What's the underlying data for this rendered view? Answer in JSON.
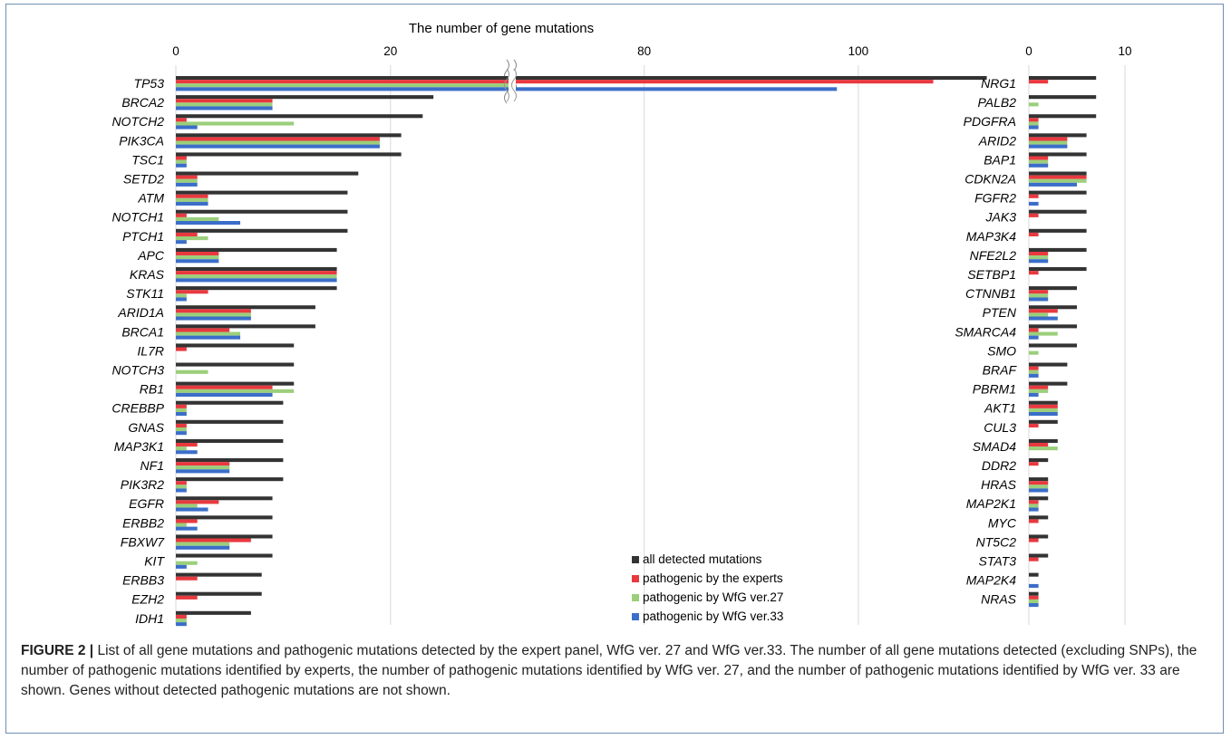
{
  "chart_data": {
    "type": "bar",
    "orientation": "horizontal",
    "title": "The number of gene mutations",
    "series": [
      {
        "name": "all detected mutations",
        "color": "#333333"
      },
      {
        "name": "pathogenic by the experts",
        "color": "#e8393f"
      },
      {
        "name": "pathogenic by WfG ver.27",
        "color": "#9bcf7b"
      },
      {
        "name": "pathogenic by WfG ver.33",
        "color": "#3b6ec9"
      }
    ],
    "panels": [
      {
        "id": "left",
        "axis": {
          "type": "broken",
          "segments": [
            {
              "range": [
                0,
                31
              ],
              "ticks": [
                0,
                20
              ]
            },
            {
              "range": [
                68,
                115
              ],
              "ticks": [
                80,
                100
              ]
            }
          ]
        },
        "grid": true,
        "genes": [
          "TP53",
          "BRCA2",
          "NOTCH2",
          "PIK3CA",
          "TSC1",
          "SETD2",
          "ATM",
          "NOTCH1",
          "PTCH1",
          "APC",
          "KRAS",
          "STK11",
          "ARID1A",
          "BRCA1",
          "IL7R",
          "NOTCH3",
          "RB1",
          "CREBBP",
          "GNAS",
          "MAP3K1",
          "NF1",
          "PIK3R2",
          "EGFR",
          "ERBB2",
          "FBXW7",
          "KIT",
          "ERBB3",
          "EZH2",
          "IDH1"
        ],
        "values": [
          [
            112,
            107,
            68,
            98
          ],
          [
            24,
            9,
            9,
            9
          ],
          [
            23,
            1,
            11,
            2
          ],
          [
            21,
            19,
            19,
            19
          ],
          [
            21,
            1,
            1,
            1
          ],
          [
            17,
            2,
            2,
            2
          ],
          [
            16,
            3,
            3,
            3
          ],
          [
            16,
            1,
            4,
            6
          ],
          [
            16,
            2,
            3,
            1
          ],
          [
            15,
            4,
            4,
            4
          ],
          [
            15,
            15,
            15,
            15
          ],
          [
            15,
            3,
            1,
            1
          ],
          [
            13,
            7,
            7,
            7
          ],
          [
            13,
            5,
            6,
            6
          ],
          [
            11,
            1,
            0,
            0
          ],
          [
            11,
            0,
            3,
            0
          ],
          [
            11,
            9,
            11,
            9
          ],
          [
            10,
            1,
            1,
            1
          ],
          [
            10,
            1,
            1,
            1
          ],
          [
            10,
            2,
            1,
            2
          ],
          [
            10,
            5,
            5,
            5
          ],
          [
            10,
            1,
            1,
            1
          ],
          [
            9,
            4,
            2,
            3
          ],
          [
            9,
            2,
            1,
            2
          ],
          [
            9,
            7,
            5,
            5
          ],
          [
            9,
            0,
            2,
            1
          ],
          [
            8,
            2,
            0,
            0
          ],
          [
            8,
            2,
            0,
            0
          ],
          [
            7,
            1,
            1,
            1
          ]
        ]
      },
      {
        "id": "right",
        "axis": {
          "range": [
            0,
            14
          ],
          "ticks": [
            0,
            10
          ]
        },
        "grid": true,
        "genes": [
          "NRG1",
          "PALB2",
          "PDGFRA",
          "ARID2",
          "BAP1",
          "CDKN2A",
          "FGFR2",
          "JAK3",
          "MAP3K4",
          "NFE2L2",
          "SETBP1",
          "CTNNB1",
          "PTEN",
          "SMARCA4",
          "SMO",
          "BRAF",
          "PBRM1",
          "AKT1",
          "CUL3",
          "SMAD4",
          "DDR2",
          "HRAS",
          "MAP2K1",
          "MYC",
          "NT5C2",
          "STAT3",
          "MAP2K4",
          "NRAS"
        ],
        "values": [
          [
            7,
            2,
            0,
            0
          ],
          [
            7,
            0,
            1,
            0
          ],
          [
            7,
            1,
            1,
            1
          ],
          [
            6,
            4,
            4,
            4
          ],
          [
            6,
            2,
            2,
            2
          ],
          [
            6,
            6,
            6,
            5
          ],
          [
            6,
            1,
            0,
            1
          ],
          [
            6,
            1,
            0,
            0
          ],
          [
            6,
            1,
            0,
            0
          ],
          [
            6,
            2,
            2,
            2
          ],
          [
            6,
            1,
            0,
            0
          ],
          [
            5,
            2,
            2,
            2
          ],
          [
            5,
            3,
            2,
            3
          ],
          [
            5,
            1,
            3,
            1
          ],
          [
            5,
            0,
            1,
            0
          ],
          [
            4,
            1,
            1,
            1
          ],
          [
            4,
            2,
            2,
            1
          ],
          [
            3,
            3,
            3,
            3
          ],
          [
            3,
            1,
            0,
            0
          ],
          [
            3,
            2,
            3,
            0
          ],
          [
            2,
            1,
            0,
            0
          ],
          [
            2,
            2,
            2,
            2
          ],
          [
            2,
            1,
            1,
            1
          ],
          [
            2,
            1,
            0,
            0
          ],
          [
            2,
            1,
            0,
            0
          ],
          [
            2,
            1,
            0,
            0
          ],
          [
            1,
            0,
            0,
            1
          ],
          [
            1,
            1,
            1,
            1
          ]
        ]
      }
    ]
  },
  "caption": {
    "label": "FIGURE 2 |",
    "text": "List of all gene mutations and pathogenic mutations detected by the expert panel, WfG ver. 27 and WfG ver.33. The number of all gene mutations detected (excluding SNPs), the number of pathogenic mutations identified by experts, the number of pathogenic mutations identified by WfG ver. 27, and the number of pathogenic mutations identified by WfG ver. 33 are shown. Genes without detected pathogenic mutations are not shown."
  }
}
